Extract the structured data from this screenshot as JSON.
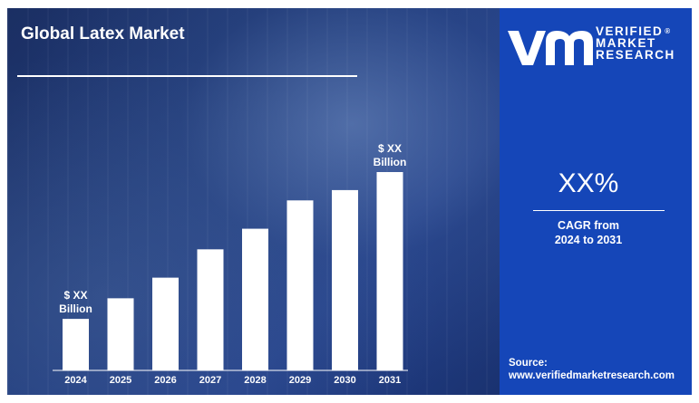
{
  "title": "Global Latex Market",
  "brand": {
    "line1": "VERIFIED",
    "line2": "MARKET",
    "line3": "RESEARCH",
    "mark": "®"
  },
  "cagr": {
    "value": "XX%",
    "label_line1": "CAGR from",
    "label_line2": "2024 to 2031"
  },
  "source": {
    "label": "Source:",
    "url": "www.verifiedmarketresearch.com"
  },
  "colors": {
    "right_panel": "#1546b8",
    "left_panel": "#1f3a7a",
    "bar": "#ffffff",
    "text": "#ffffff"
  },
  "chart_data": {
    "type": "bar",
    "categories": [
      "2024",
      "2025",
      "2026",
      "2027",
      "2028",
      "2029",
      "2030",
      "2031"
    ],
    "values": [
      1.0,
      1.4,
      1.8,
      2.35,
      2.75,
      3.3,
      3.5,
      3.85
    ],
    "value_scale": "relative (no axis printed)",
    "annotations": [
      {
        "category": "2024",
        "line1": "$ XX",
        "line2": "Billion"
      },
      {
        "category": "2031",
        "line1": "$ XX",
        "line2": "Billion"
      }
    ],
    "grid": false,
    "legend": "none"
  }
}
